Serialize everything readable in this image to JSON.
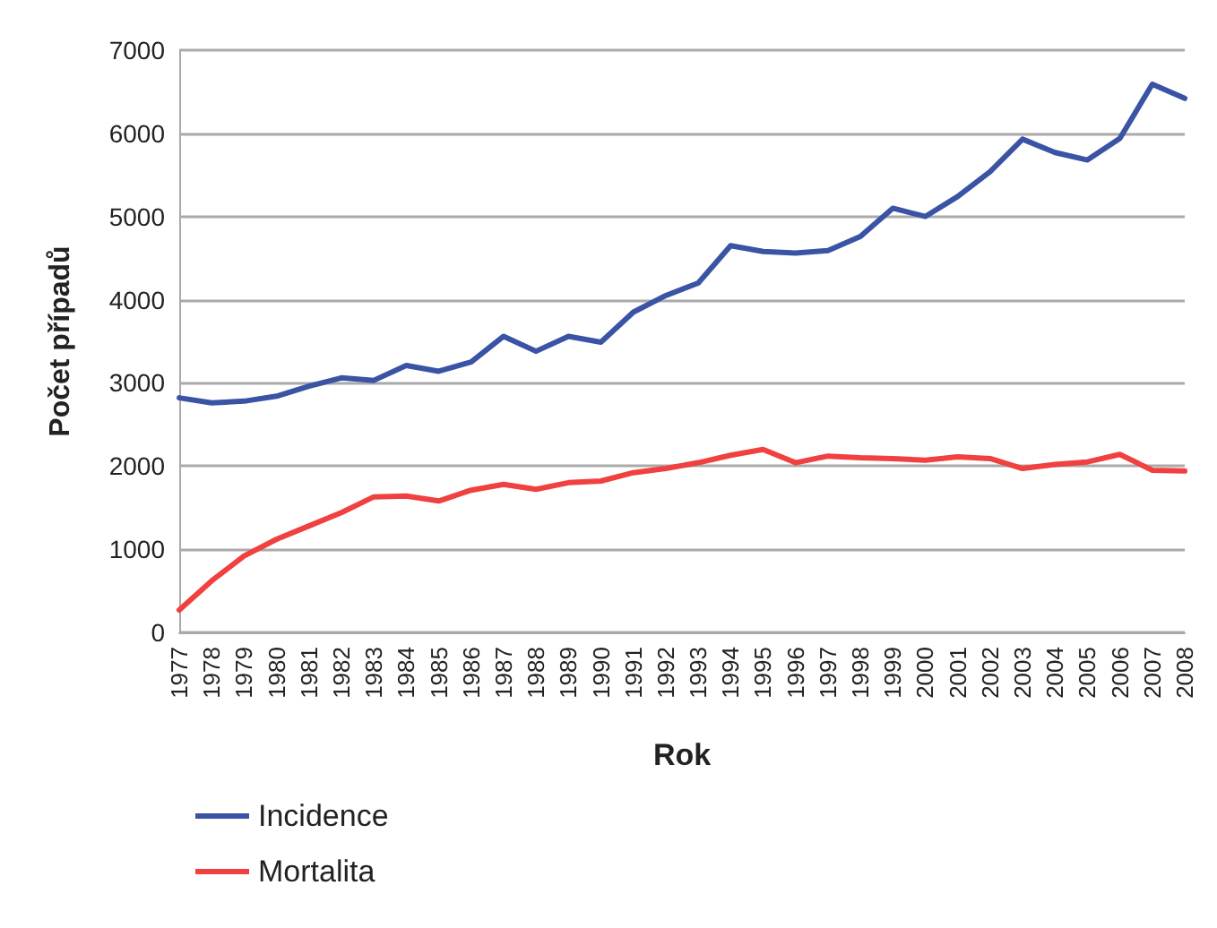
{
  "chart_data": {
    "type": "line",
    "xlabel": "Rok",
    "ylabel": "Počet případů",
    "categories": [
      "1977",
      "1978",
      "1979",
      "1980",
      "1981",
      "1982",
      "1983",
      "1984",
      "1985",
      "1986",
      "1987",
      "1988",
      "1989",
      "1990",
      "1991",
      "1992",
      "1993",
      "1994",
      "1995",
      "1996",
      "1997",
      "1998",
      "1999",
      "2000",
      "2001",
      "2002",
      "2003",
      "2004",
      "2005",
      "2006",
      "2007",
      "2008"
    ],
    "series": [
      {
        "name": "Incidence",
        "color": "#3a53a4",
        "values": [
          2820,
          2760,
          2780,
          2840,
          2960,
          3060,
          3030,
          3210,
          3140,
          3250,
          3560,
          3380,
          3560,
          3490,
          3850,
          4050,
          4200,
          4650,
          4580,
          4560,
          4590,
          4760,
          5100,
          5000,
          5240,
          5540,
          5930,
          5770,
          5680,
          5940,
          6590,
          6420
        ]
      },
      {
        "name": "Mortalita",
        "color": "#f04040",
        "values": [
          270,
          620,
          920,
          1120,
          1280,
          1440,
          1630,
          1640,
          1580,
          1710,
          1780,
          1720,
          1800,
          1820,
          1920,
          1970,
          2040,
          2130,
          2200,
          2040,
          2120,
          2100,
          2090,
          2070,
          2110,
          2090,
          1970,
          2020,
          2050,
          2140,
          1950,
          1940
        ]
      }
    ],
    "ylim": [
      0,
      7000
    ],
    "yticks": [
      0,
      1000,
      2000,
      3000,
      4000,
      5000,
      6000,
      7000
    ],
    "grid": "y",
    "legend": "bottom left",
    "marker": "none",
    "line_style": "solid"
  }
}
